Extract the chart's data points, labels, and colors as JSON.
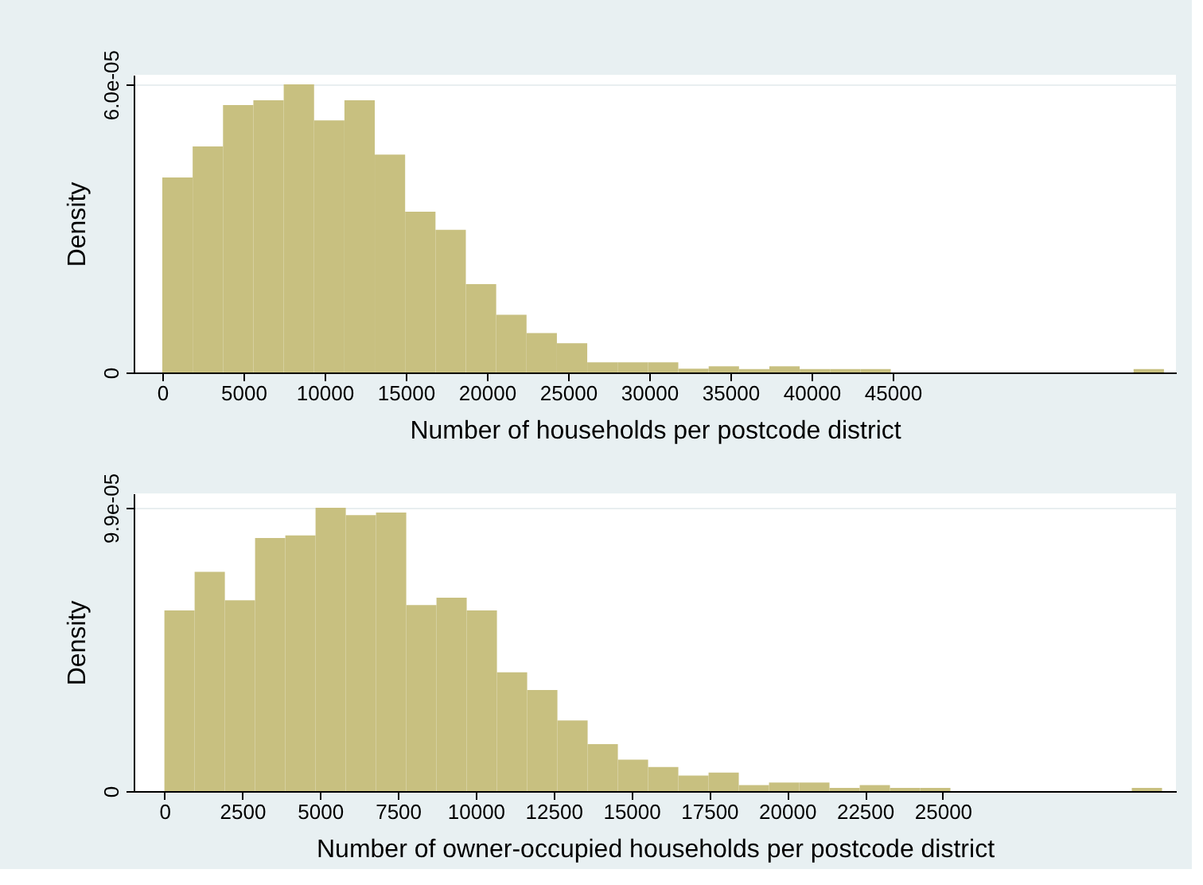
{
  "chart_data": [
    {
      "type": "histogram",
      "xlabel": "Number of households per postcode district",
      "ylabel": "Density",
      "color": "#c8c080",
      "grid": "y",
      "bins": [
        0,
        1870,
        3740,
        5610,
        7480,
        9350,
        11220,
        13090,
        14960,
        16830,
        18700,
        20570,
        22440,
        24310,
        26180,
        28050,
        29920,
        31790,
        33660,
        35530,
        37400,
        39270,
        41140,
        43010,
        44880,
        46750,
        48620,
        50490,
        52360,
        54230,
        56100,
        57970,
        59840,
        61710
      ],
      "values": [
        4.06e-05,
        4.71e-05,
        5.57e-05,
        5.67e-05,
        6e-05,
        5.25e-05,
        5.67e-05,
        4.54e-05,
        3.35e-05,
        2.97e-05,
        1.84e-05,
        1.2e-05,
        8.2e-06,
        6.1e-06,
        2.1e-06,
        2.1e-06,
        2.1e-06,
        8e-07,
        1.3e-06,
        7e-07,
        1.3e-06,
        7e-07,
        7e-07,
        7e-07,
        0,
        0,
        0,
        0,
        0,
        0,
        0,
        0,
        7e-07
      ],
      "xlim": [
        -1765,
        62450
      ],
      "xticks": [
        0,
        5000,
        10000,
        15000,
        20000,
        25000,
        30000,
        35000,
        40000,
        45000
      ],
      "ylim": [
        0,
        6.2e-05
      ],
      "yticks": [
        0,
        {
          "value": 6e-05,
          "label": "6.0e-05"
        }
      ]
    },
    {
      "type": "histogram",
      "xlabel": "Number of owner-occupied households per postcode district",
      "ylabel": "Density",
      "color": "#c8c080",
      "grid": "y",
      "bins": [
        0,
        971,
        1942,
        2913,
        3884,
        4855,
        5826,
        6797,
        7768,
        8739,
        9710,
        10681,
        11652,
        12623,
        13594,
        14565,
        15536,
        16507,
        17478,
        18449,
        19420,
        20391,
        21362,
        22333,
        23304,
        24275,
        25246,
        26217,
        27188,
        28159,
        29130,
        30101,
        31072,
        32043
      ],
      "values": [
        6.31e-05,
        7.66e-05,
        6.67e-05,
        8.84e-05,
        8.93e-05,
        9.9e-05,
        9.64e-05,
        9.73e-05,
        6.5e-05,
        6.76e-05,
        6.31e-05,
        4.15e-05,
        3.53e-05,
        2.47e-05,
        1.64e-05,
        1.1e-05,
        8.4e-06,
        5.4e-06,
        6.5e-06,
        2.1e-06,
        3e-06,
        3e-06,
        1.1e-06,
        2.1e-06,
        1.1e-06,
        1.1e-06,
        0,
        0,
        0,
        0,
        0,
        0,
        1.1e-06
      ],
      "xlim": [
        -987,
        32490
      ],
      "xticks": [
        0,
        2500,
        5000,
        7500,
        10000,
        12500,
        15000,
        17500,
        20000,
        22500,
        25000
      ],
      "ylim": [
        0,
        0.000104
      ],
      "yticks": [
        0,
        {
          "value": 9.9e-05,
          "label": "9.9e-05"
        }
      ]
    }
  ]
}
